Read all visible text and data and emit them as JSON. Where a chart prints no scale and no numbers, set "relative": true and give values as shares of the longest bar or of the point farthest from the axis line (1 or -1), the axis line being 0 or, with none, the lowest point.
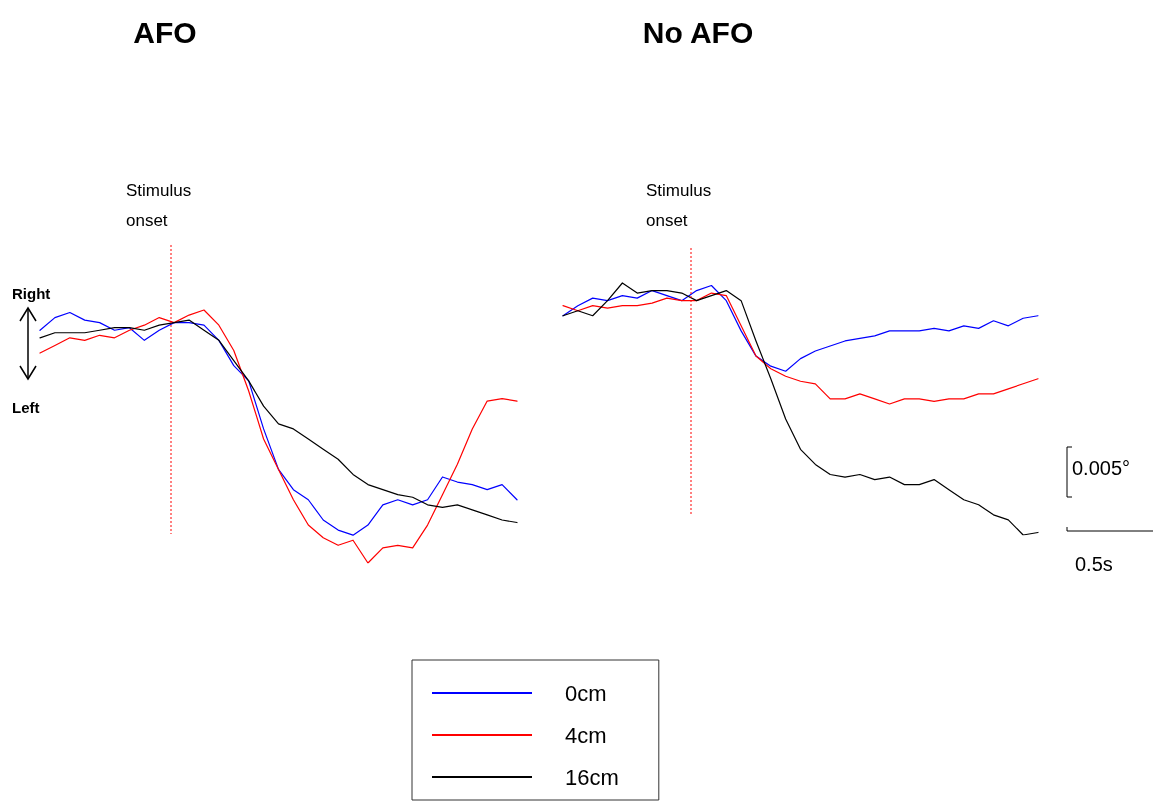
{
  "chart_data": [
    {
      "type": "line",
      "title": "AFO",
      "relative": true,
      "categories": [
        null,
        null,
        null,
        null,
        null,
        null,
        null,
        null,
        null,
        null,
        null,
        null,
        null,
        null,
        null,
        null,
        null,
        null,
        null,
        null,
        null,
        null,
        null,
        null,
        null,
        null,
        null,
        null,
        null,
        null,
        null,
        null,
        null
      ],
      "series": [
        {
          "color": "#0000ff",
          "values": [
            0.92,
            0.97,
            0.99,
            0.96,
            0.95,
            0.92,
            0.93,
            0.88,
            0.92,
            0.95,
            0.95,
            0.94,
            0.88,
            0.78,
            0.72,
            0.53,
            0.37,
            0.29,
            0.25,
            0.17,
            0.13,
            0.11,
            0.15,
            0.23,
            0.25,
            0.23,
            0.25,
            0.34,
            0.32,
            0.31,
            0.29,
            0.31,
            0.25
          ]
        },
        {
          "color": "#ff0000",
          "values": [
            0.83,
            0.86,
            0.89,
            0.88,
            0.9,
            0.89,
            0.92,
            0.94,
            0.97,
            0.95,
            0.98,
            1,
            0.94,
            0.84,
            0.68,
            0.49,
            0.37,
            0.25,
            0.15,
            0.1,
            0.07,
            0.09,
            0,
            0.06,
            0.07,
            0.06,
            0.15,
            0.27,
            0.39,
            0.53,
            0.64,
            0.65,
            0.64
          ]
        },
        {
          "color": "#000000",
          "values": [
            0.89,
            0.91,
            0.91,
            0.91,
            0.92,
            0.93,
            0.93,
            0.92,
            0.94,
            0.95,
            0.96,
            0.92,
            0.88,
            0.8,
            0.72,
            0.62,
            0.55,
            0.53,
            0.49,
            0.45,
            0.41,
            0.35,
            0.31,
            0.29,
            0.27,
            0.26,
            0.23,
            0.22,
            0.23,
            0.21,
            0.19,
            0.17,
            0.16
          ]
        }
      ],
      "annotations": [
        "Stimulus onset",
        "Right",
        "Left"
      ],
      "marker": "none",
      "line_style": "solid",
      "grid": false
    },
    {
      "type": "line",
      "title": "No AFO",
      "relative": true,
      "categories": [
        null,
        null,
        null,
        null,
        null,
        null,
        null,
        null,
        null,
        null,
        null,
        null,
        null,
        null,
        null,
        null,
        null,
        null,
        null,
        null,
        null,
        null,
        null,
        null,
        null,
        null,
        null,
        null,
        null,
        null,
        null,
        null,
        null
      ],
      "series": [
        {
          "name": "0cm",
          "color": "#0000ff",
          "values": [
            0.87,
            0.91,
            0.94,
            0.93,
            0.95,
            0.94,
            0.97,
            0.95,
            0.93,
            0.97,
            0.99,
            0.93,
            0.81,
            0.71,
            0.67,
            0.65,
            0.7,
            0.73,
            0.75,
            0.77,
            0.78,
            0.79,
            0.81,
            0.81,
            0.81,
            0.82,
            0.81,
            0.83,
            0.82,
            0.85,
            0.83,
            0.86,
            0.87
          ]
        },
        {
          "name": "4cm",
          "color": "#ff0000",
          "values": [
            0.91,
            0.89,
            0.91,
            0.9,
            0.91,
            0.91,
            0.92,
            0.94,
            0.93,
            0.93,
            0.96,
            0.95,
            0.83,
            0.71,
            0.66,
            0.63,
            0.61,
            0.6,
            0.54,
            0.54,
            0.56,
            0.54,
            0.52,
            0.54,
            0.54,
            0.53,
            0.54,
            0.54,
            0.56,
            0.56,
            0.58,
            0.6,
            0.62
          ]
        },
        {
          "name": "16cm",
          "color": "#000000",
          "values": [
            0.87,
            0.89,
            0.87,
            0.93,
            1,
            0.96,
            0.97,
            0.97,
            0.96,
            0.93,
            0.95,
            0.97,
            0.93,
            0.77,
            0.62,
            0.46,
            0.34,
            0.28,
            0.24,
            0.23,
            0.24,
            0.22,
            0.23,
            0.2,
            0.2,
            0.22,
            0.18,
            0.14,
            0.12,
            0.08,
            0.06,
            0,
            0.01
          ]
        }
      ],
      "annotations": [
        "Stimulus onset",
        "0.005°",
        "0.5s"
      ],
      "marker": "none",
      "line_style": "solid",
      "grid": false,
      "legend": "bottom"
    }
  ]
}
